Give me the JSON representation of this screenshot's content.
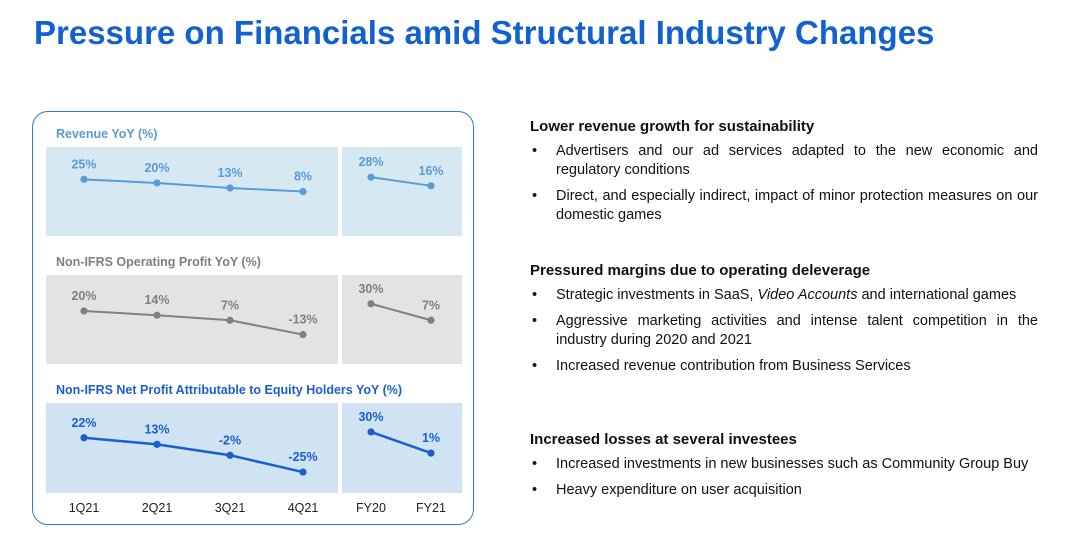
{
  "title": "Pressure on Financials amid Structural Industry Changes",
  "colors": {
    "title": "#1261d0",
    "revenue": "#5b9bd5",
    "operating": "#808080",
    "net": "#1a5fd0",
    "revenue_bg": "#d6e9f2",
    "operating_bg": "#e3e3e3",
    "net_bg": "#cfe3f2"
  },
  "chart_data": {
    "type": "line",
    "categories_quarterly": [
      "1Q21",
      "2Q21",
      "3Q21",
      "4Q21"
    ],
    "categories_annual": [
      "FY20",
      "FY21"
    ],
    "series": [
      {
        "name": "Revenue YoY (%)",
        "quarterly": [
          25,
          20,
          13,
          8
        ],
        "annual": [
          28,
          16
        ],
        "quarterly_labels": [
          "25%",
          "20%",
          "13%",
          "8%"
        ],
        "annual_labels": [
          "28%",
          "16%"
        ]
      },
      {
        "name": "Non-IFRS Operating Profit YoY (%)",
        "quarterly": [
          20,
          14,
          7,
          -13
        ],
        "annual": [
          30,
          7
        ],
        "quarterly_labels": [
          "20%",
          "14%",
          "7%",
          "-13%"
        ],
        "annual_labels": [
          "30%",
          "7%"
        ]
      },
      {
        "name": "Non-IFRS Net Profit Attributable to Equity Holders YoY (%)",
        "quarterly": [
          22,
          13,
          -2,
          -25
        ],
        "annual": [
          30,
          1
        ],
        "quarterly_labels": [
          "22%",
          "13%",
          "-2%",
          "-25%"
        ],
        "annual_labels": [
          "30%",
          "1%"
        ]
      }
    ]
  },
  "sections": [
    {
      "heading": "Lower revenue growth for sustainability",
      "bullets": [
        "Advertisers and our ad services adapted to the new economic and regulatory conditions",
        "Direct, and especially indirect, impact of minor protection measures on our domestic games"
      ]
    },
    {
      "heading": "Pressured margins due to operating deleverage",
      "bullets": [
        "Strategic investments in SaaS, Video Accounts and international games",
        "Aggressive marketing activities and intense talent competition in the industry during 2020 and 2021",
        "Increased revenue contribution from Business Services"
      ]
    },
    {
      "heading": "Increased losses at several investees",
      "bullets": [
        "Increased investments in new businesses such as Community Group Buy",
        "Heavy expenditure on user acquisition"
      ]
    }
  ],
  "bullet_char": "•"
}
